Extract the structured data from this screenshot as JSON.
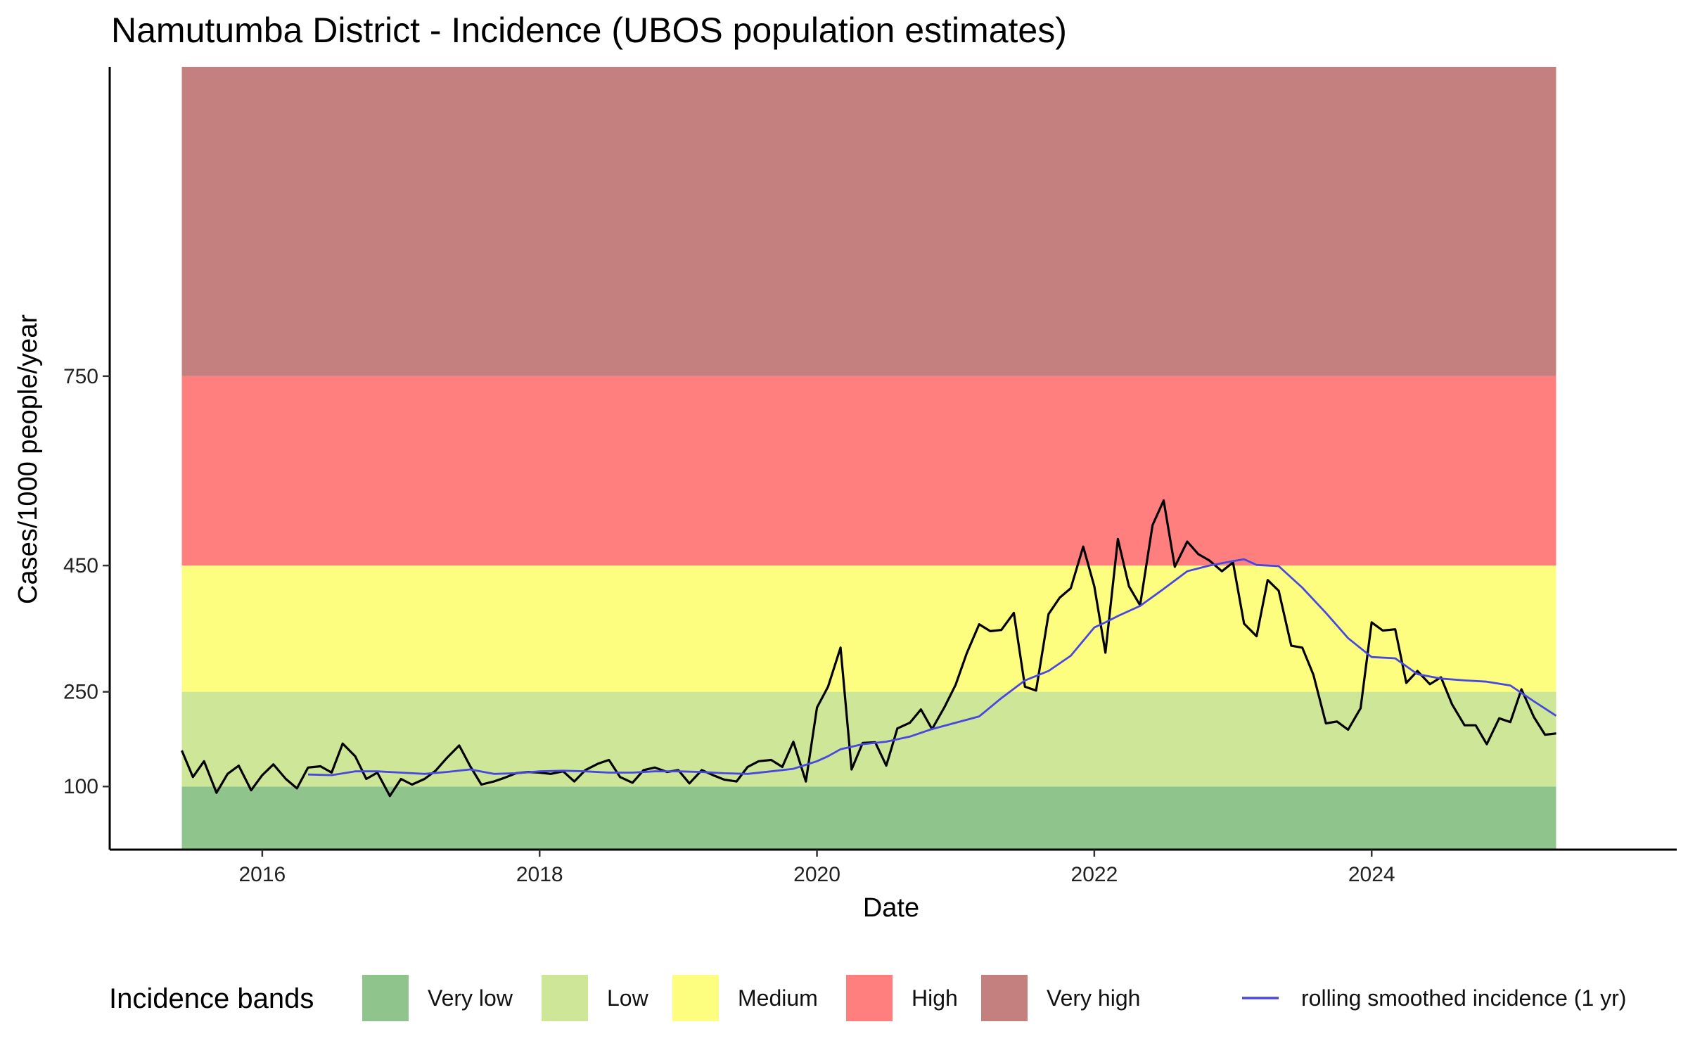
{
  "chart_data": {
    "type": "line",
    "title": "Namutumba District - Incidence (UBOS population estimates)",
    "xlabel": "Date",
    "ylabel": "Cases/1000 people/year",
    "xlim": [
      2014.9,
      2026.2
    ],
    "ylim": [
      0,
      1240
    ],
    "x_ticks": [
      2016,
      2018,
      2020,
      2022,
      2024
    ],
    "y_ticks": [
      100,
      250,
      450,
      750
    ],
    "legend_position": "bottom",
    "legend_title": "Incidence bands",
    "bands": [
      {
        "name": "Very low",
        "from": 0,
        "to": 100,
        "color": "#8fc48d"
      },
      {
        "name": "Low",
        "from": 100,
        "to": 250,
        "color": "#cde697"
      },
      {
        "name": "Medium",
        "from": 250,
        "to": 450,
        "color": "#fdfd7f"
      },
      {
        "name": "High",
        "from": 450,
        "to": 750,
        "color": "#ff7f7f"
      },
      {
        "name": "Very high",
        "from": 750,
        "to": 1240,
        "color": "#c47f7f"
      }
    ],
    "band_x_range": [
      2015.42,
      2025.33
    ],
    "series": [
      {
        "name": "",
        "color": "#000000",
        "points": [
          [
            2015.42,
            157
          ],
          [
            2015.5,
            115
          ],
          [
            2015.58,
            140
          ],
          [
            2015.67,
            90
          ],
          [
            2015.75,
            120
          ],
          [
            2015.83,
            133
          ],
          [
            2015.92,
            94
          ],
          [
            2016.0,
            118
          ],
          [
            2016.08,
            135
          ],
          [
            2016.17,
            112
          ],
          [
            2016.25,
            97
          ],
          [
            2016.33,
            130
          ],
          [
            2016.42,
            132
          ],
          [
            2016.5,
            122
          ],
          [
            2016.58,
            168
          ],
          [
            2016.67,
            148
          ],
          [
            2016.75,
            112
          ],
          [
            2016.83,
            122
          ],
          [
            2016.92,
            85
          ],
          [
            2017.0,
            112
          ],
          [
            2017.08,
            103
          ],
          [
            2017.17,
            112
          ],
          [
            2017.25,
            125
          ],
          [
            2017.33,
            145
          ],
          [
            2017.42,
            165
          ],
          [
            2017.5,
            132
          ],
          [
            2017.58,
            103
          ],
          [
            2017.67,
            108
          ],
          [
            2017.75,
            114
          ],
          [
            2017.83,
            121
          ],
          [
            2017.92,
            123
          ],
          [
            2018.0,
            122
          ],
          [
            2018.08,
            120
          ],
          [
            2018.17,
            124
          ],
          [
            2018.25,
            108
          ],
          [
            2018.33,
            126
          ],
          [
            2018.42,
            136
          ],
          [
            2018.5,
            142
          ],
          [
            2018.58,
            115
          ],
          [
            2018.67,
            106
          ],
          [
            2018.75,
            126
          ],
          [
            2018.83,
            130
          ],
          [
            2018.92,
            123
          ],
          [
            2019.0,
            126
          ],
          [
            2019.08,
            105
          ],
          [
            2019.17,
            126
          ],
          [
            2019.25,
            118
          ],
          [
            2019.33,
            111
          ],
          [
            2019.42,
            108
          ],
          [
            2019.5,
            131
          ],
          [
            2019.58,
            140
          ],
          [
            2019.67,
            142
          ],
          [
            2019.75,
            131
          ],
          [
            2019.83,
            171
          ],
          [
            2019.92,
            108
          ],
          [
            2020.0,
            225
          ],
          [
            2020.08,
            258
          ],
          [
            2020.17,
            320
          ],
          [
            2020.25,
            127
          ],
          [
            2020.33,
            169
          ],
          [
            2020.42,
            170
          ],
          [
            2020.5,
            133
          ],
          [
            2020.58,
            192
          ],
          [
            2020.67,
            201
          ],
          [
            2020.75,
            222
          ],
          [
            2020.83,
            191
          ],
          [
            2020.92,
            226
          ],
          [
            2021.0,
            261
          ],
          [
            2021.08,
            311
          ],
          [
            2021.17,
            357
          ],
          [
            2021.25,
            346
          ],
          [
            2021.33,
            348
          ],
          [
            2021.42,
            375
          ],
          [
            2021.5,
            258
          ],
          [
            2021.58,
            252
          ],
          [
            2021.67,
            373
          ],
          [
            2021.75,
            399
          ],
          [
            2021.83,
            414
          ],
          [
            2021.92,
            480
          ],
          [
            2022.0,
            417
          ],
          [
            2022.08,
            312
          ],
          [
            2022.17,
            492
          ],
          [
            2022.25,
            417
          ],
          [
            2022.33,
            387
          ],
          [
            2022.42,
            514
          ],
          [
            2022.5,
            553
          ],
          [
            2022.58,
            448
          ],
          [
            2022.67,
            488
          ],
          [
            2022.75,
            468
          ],
          [
            2022.83,
            458
          ],
          [
            2022.92,
            441
          ],
          [
            2023.0,
            455
          ],
          [
            2023.08,
            358
          ],
          [
            2023.17,
            338
          ],
          [
            2023.25,
            427
          ],
          [
            2023.33,
            410
          ],
          [
            2023.42,
            323
          ],
          [
            2023.5,
            320
          ],
          [
            2023.58,
            277
          ],
          [
            2023.67,
            200
          ],
          [
            2023.75,
            203
          ],
          [
            2023.83,
            190
          ],
          [
            2023.92,
            224
          ],
          [
            2024.0,
            360
          ],
          [
            2024.08,
            347
          ],
          [
            2024.17,
            349
          ],
          [
            2024.25,
            264
          ],
          [
            2024.33,
            283
          ],
          [
            2024.42,
            262
          ],
          [
            2024.5,
            273
          ],
          [
            2024.58,
            230
          ],
          [
            2024.67,
            197
          ],
          [
            2024.75,
            197
          ],
          [
            2024.83,
            167
          ],
          [
            2024.92,
            208
          ],
          [
            2025.0,
            202
          ],
          [
            2025.08,
            254
          ],
          [
            2025.17,
            210
          ],
          [
            2025.25,
            182
          ],
          [
            2025.33,
            184
          ]
        ]
      },
      {
        "name": "rolling smoothed incidence (1 yr)",
        "color": "#4848e0",
        "points": [
          [
            2016.33,
            119
          ],
          [
            2016.5,
            118
          ],
          [
            2016.67,
            124
          ],
          [
            2016.83,
            124
          ],
          [
            2017.0,
            122
          ],
          [
            2017.17,
            120
          ],
          [
            2017.33,
            123
          ],
          [
            2017.5,
            127
          ],
          [
            2017.67,
            120
          ],
          [
            2017.83,
            121
          ],
          [
            2018.0,
            124
          ],
          [
            2018.17,
            125
          ],
          [
            2018.33,
            124
          ],
          [
            2018.5,
            122
          ],
          [
            2018.67,
            122
          ],
          [
            2018.83,
            124
          ],
          [
            2019.0,
            124
          ],
          [
            2019.17,
            123
          ],
          [
            2019.33,
            121
          ],
          [
            2019.5,
            120
          ],
          [
            2019.67,
            124
          ],
          [
            2019.83,
            128
          ],
          [
            2020.0,
            140
          ],
          [
            2020.08,
            148
          ],
          [
            2020.17,
            159
          ],
          [
            2020.33,
            167
          ],
          [
            2020.5,
            171
          ],
          [
            2020.67,
            179
          ],
          [
            2020.83,
            191
          ],
          [
            2021.0,
            201
          ],
          [
            2021.17,
            211
          ],
          [
            2021.33,
            240
          ],
          [
            2021.5,
            268
          ],
          [
            2021.67,
            283
          ],
          [
            2021.83,
            307
          ],
          [
            2022.0,
            352
          ],
          [
            2022.08,
            360
          ],
          [
            2022.17,
            370
          ],
          [
            2022.33,
            386
          ],
          [
            2022.5,
            413
          ],
          [
            2022.67,
            441
          ],
          [
            2022.83,
            450
          ],
          [
            2023.0,
            457
          ],
          [
            2023.08,
            460
          ],
          [
            2023.17,
            451
          ],
          [
            2023.33,
            449
          ],
          [
            2023.5,
            415
          ],
          [
            2023.67,
            375
          ],
          [
            2023.83,
            335
          ],
          [
            2024.0,
            305
          ],
          [
            2024.17,
            303
          ],
          [
            2024.33,
            278
          ],
          [
            2024.5,
            271
          ],
          [
            2024.67,
            268
          ],
          [
            2024.83,
            266
          ],
          [
            2025.0,
            260
          ],
          [
            2025.17,
            235
          ],
          [
            2025.33,
            212
          ]
        ]
      }
    ]
  }
}
